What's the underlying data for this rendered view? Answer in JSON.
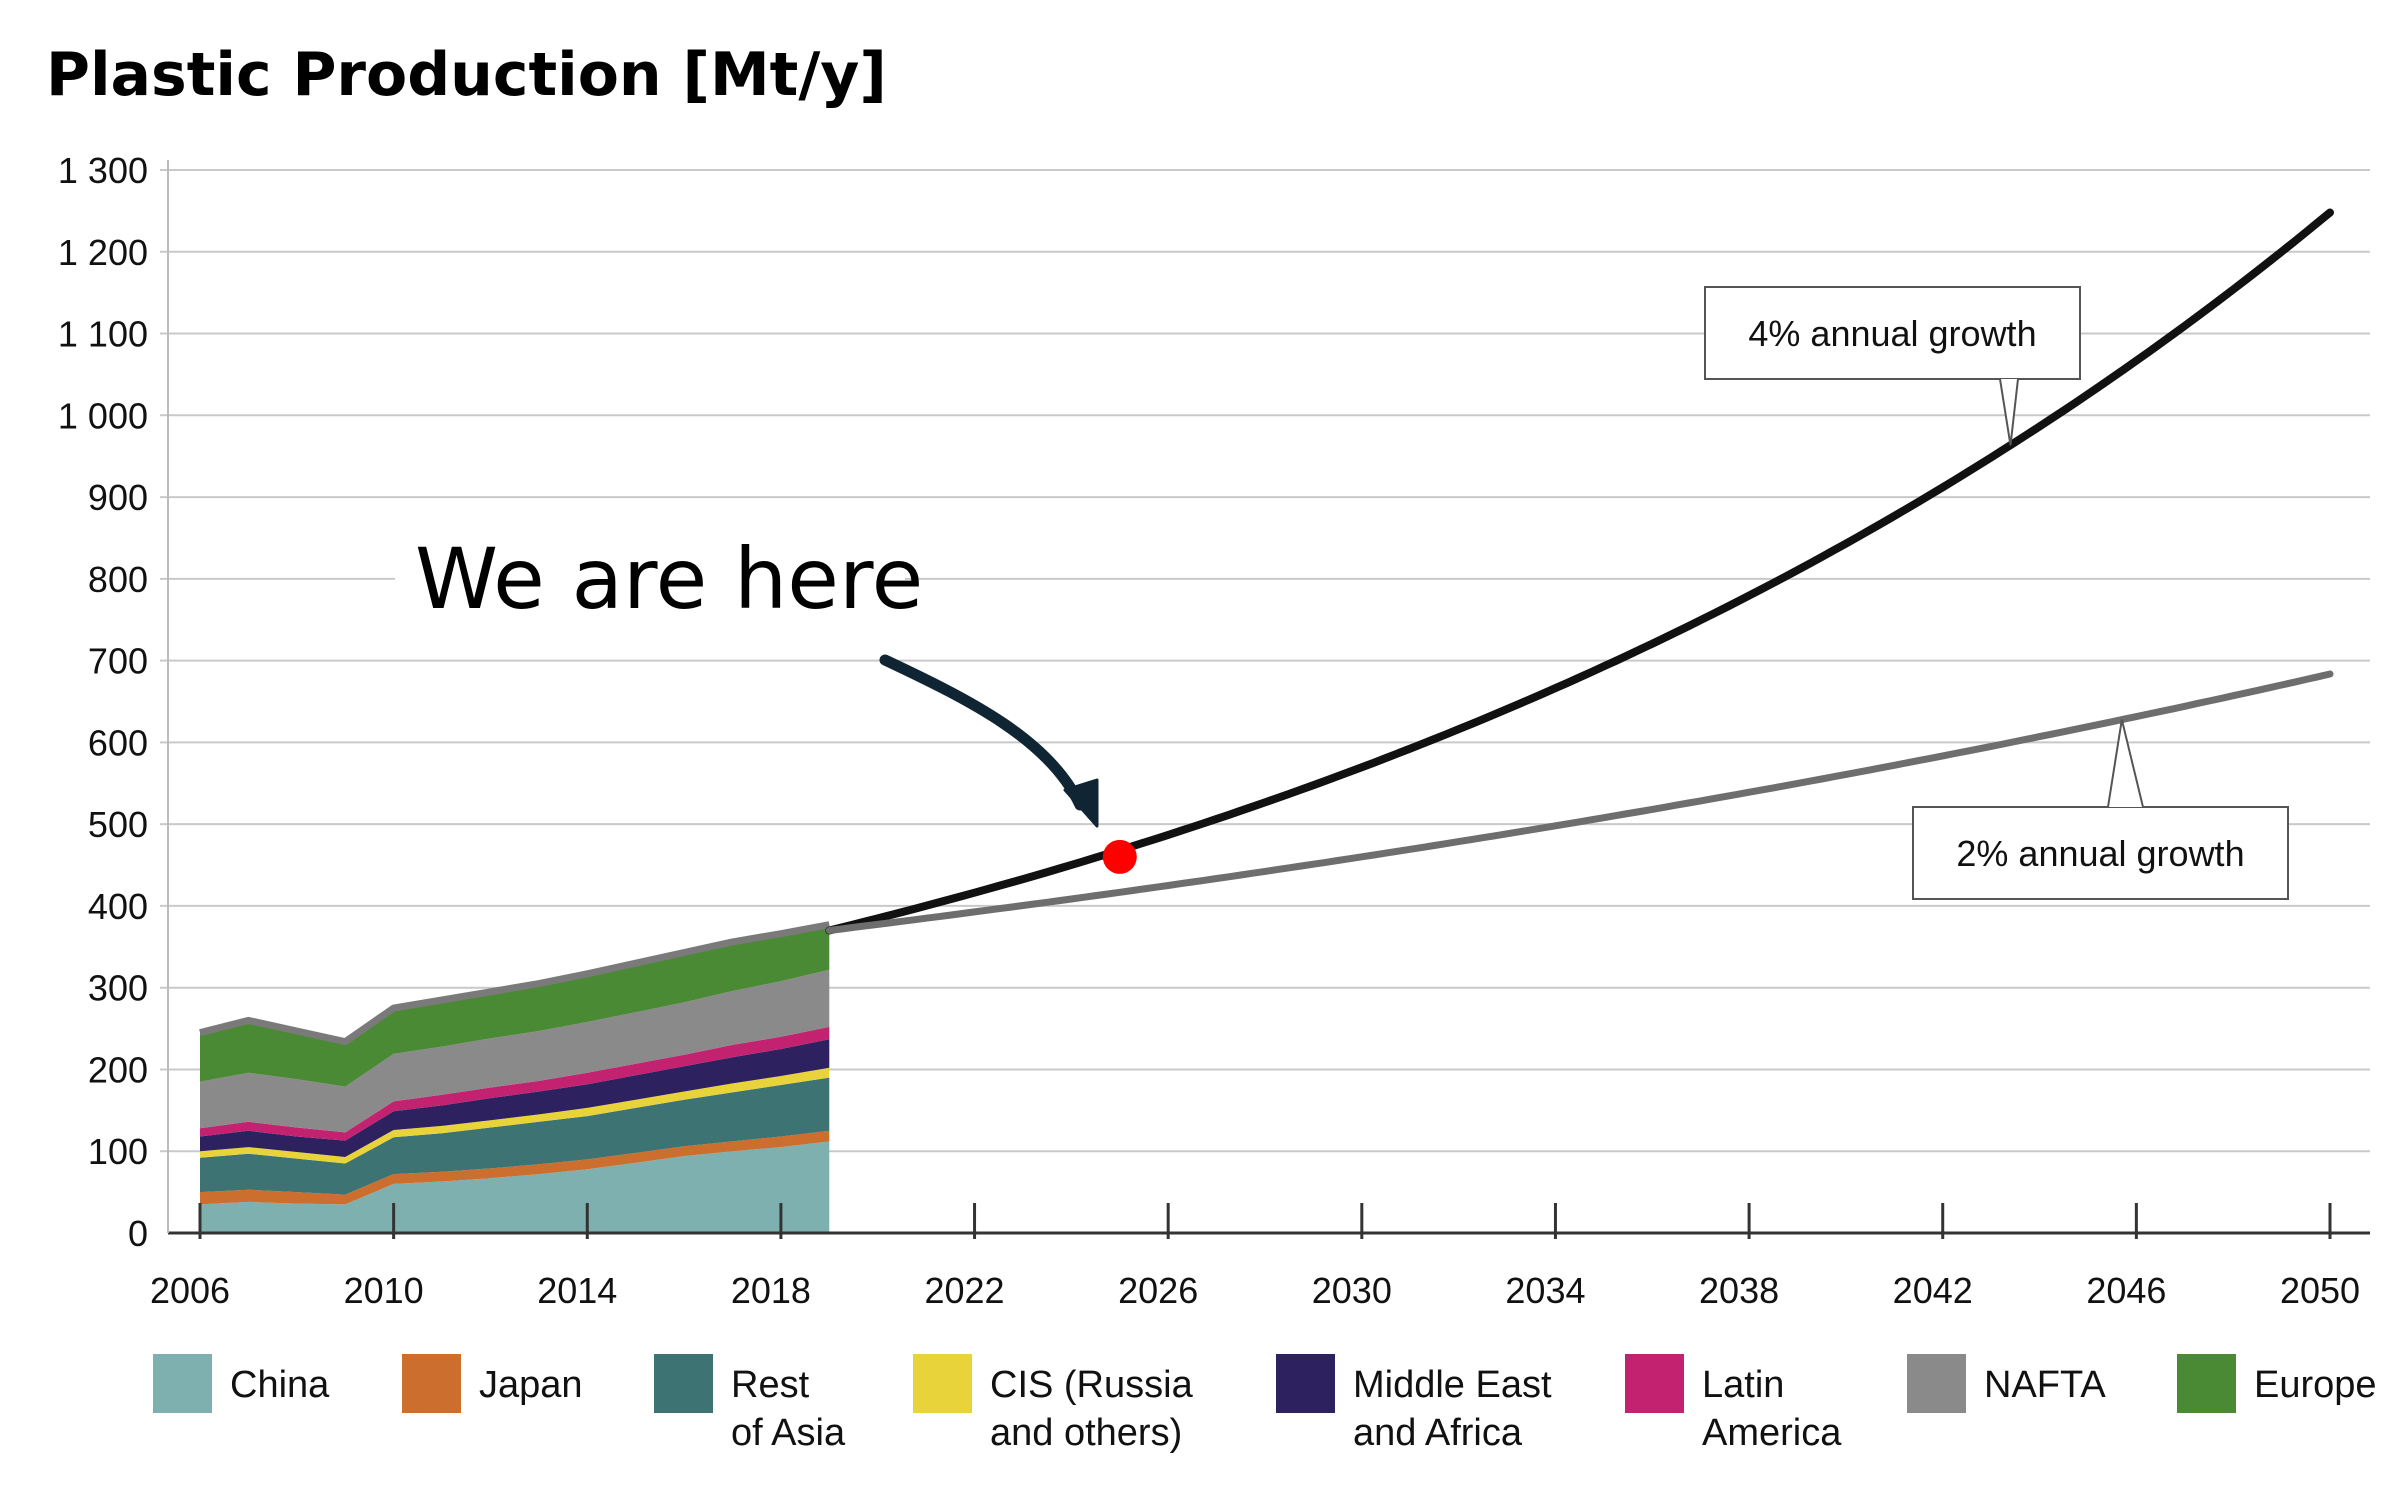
{
  "chart_data": {
    "type": "area",
    "title": "Plastic Production [Mt/y]",
    "xlabel": "",
    "ylabel": "",
    "xlim": [
      2006,
      2050
    ],
    "ylim": [
      0,
      1300
    ],
    "yticks": [
      0,
      100,
      200,
      300,
      400,
      500,
      600,
      700,
      800,
      900,
      1000,
      1100,
      1200,
      1300
    ],
    "ytick_labels": [
      "0",
      "100",
      "200",
      "300",
      "400",
      "500",
      "600",
      "700",
      "800",
      "900",
      "1 000",
      "1 100",
      "1 200",
      "1 300"
    ],
    "xticks": [
      2006,
      2010,
      2014,
      2018,
      2022,
      2026,
      2030,
      2034,
      2038,
      2042,
      2046,
      2050
    ],
    "xtick_labels": [
      "2006",
      "2010",
      "2014",
      "2018",
      "2022",
      "2026",
      "2030",
      "2034",
      "2038",
      "2042",
      "2046",
      "2050"
    ],
    "grid": true,
    "legend_position": "bottom",
    "x": [
      2006,
      2007,
      2008,
      2009,
      2010,
      2011,
      2012,
      2013,
      2014,
      2015,
      2016,
      2017,
      2018,
      2019
    ],
    "stacked_series": [
      {
        "name": "China",
        "label_lines": [
          "China"
        ],
        "color": "#7fb0b0",
        "values": [
          35,
          38,
          36,
          35,
          60,
          63,
          67,
          72,
          78,
          86,
          94,
          100,
          105,
          112
        ]
      },
      {
        "name": "Japan",
        "label_lines": [
          "Japan"
        ],
        "color": "#cc6e2e",
        "values": [
          15,
          15,
          14,
          12,
          12,
          12,
          12,
          12,
          12,
          12,
          12,
          12,
          13,
          13
        ]
      },
      {
        "name": "Rest of Asia",
        "label_lines": [
          "Rest",
          "of Asia"
        ],
        "color": "#3d7373",
        "values": [
          42,
          44,
          41,
          38,
          45,
          47,
          50,
          52,
          53,
          55,
          57,
          60,
          63,
          65
        ]
      },
      {
        "name": "CIS (Russia and others)",
        "label_lines": [
          "CIS (Russia",
          "and others)"
        ],
        "color": "#e8d43a",
        "values": [
          8,
          8,
          8,
          8,
          9,
          9,
          9,
          9,
          10,
          10,
          10,
          11,
          11,
          12
        ]
      },
      {
        "name": "Middle East and Africa",
        "label_lines": [
          "Middle East",
          "and Africa"
        ],
        "color": "#2e2160",
        "values": [
          18,
          20,
          19,
          20,
          23,
          25,
          27,
          28,
          29,
          30,
          31,
          32,
          33,
          35
        ]
      },
      {
        "name": "Latin America",
        "label_lines": [
          "Latin",
          "America"
        ],
        "color": "#c2226f",
        "values": [
          10,
          11,
          11,
          10,
          12,
          13,
          13,
          13,
          14,
          14,
          14,
          15,
          15,
          15
        ]
      },
      {
        "name": "NAFTA",
        "label_lines": [
          "NAFTA"
        ],
        "color": "#8a8a8a",
        "values": [
          57,
          60,
          59,
          56,
          58,
          59,
          60,
          61,
          62,
          63,
          64,
          66,
          68,
          70
        ]
      },
      {
        "name": "Europe",
        "label_lines": [
          "Europe"
        ],
        "color": "#4b8a34",
        "values": [
          60,
          64,
          59,
          55,
          56,
          57,
          57,
          58,
          59,
          60,
          61,
          60,
          58,
          55
        ]
      }
    ],
    "projections": [
      {
        "name": "4% annual growth",
        "label": "4% annual growth",
        "color": "#111111",
        "start_year": 2019,
        "start_value": 370,
        "growth_rate": 0.04,
        "end_year": 2050
      },
      {
        "name": "2% annual growth",
        "label": "2% annual growth",
        "color": "#6e6e6e",
        "start_year": 2019,
        "start_value": 370,
        "growth_rate": 0.02,
        "end_year": 2050
      }
    ],
    "annotation": {
      "text": "We are here",
      "marker_x": 2025,
      "marker_y": 460,
      "marker_color": "#ff0000",
      "arrow_color": "#0f2533"
    }
  }
}
